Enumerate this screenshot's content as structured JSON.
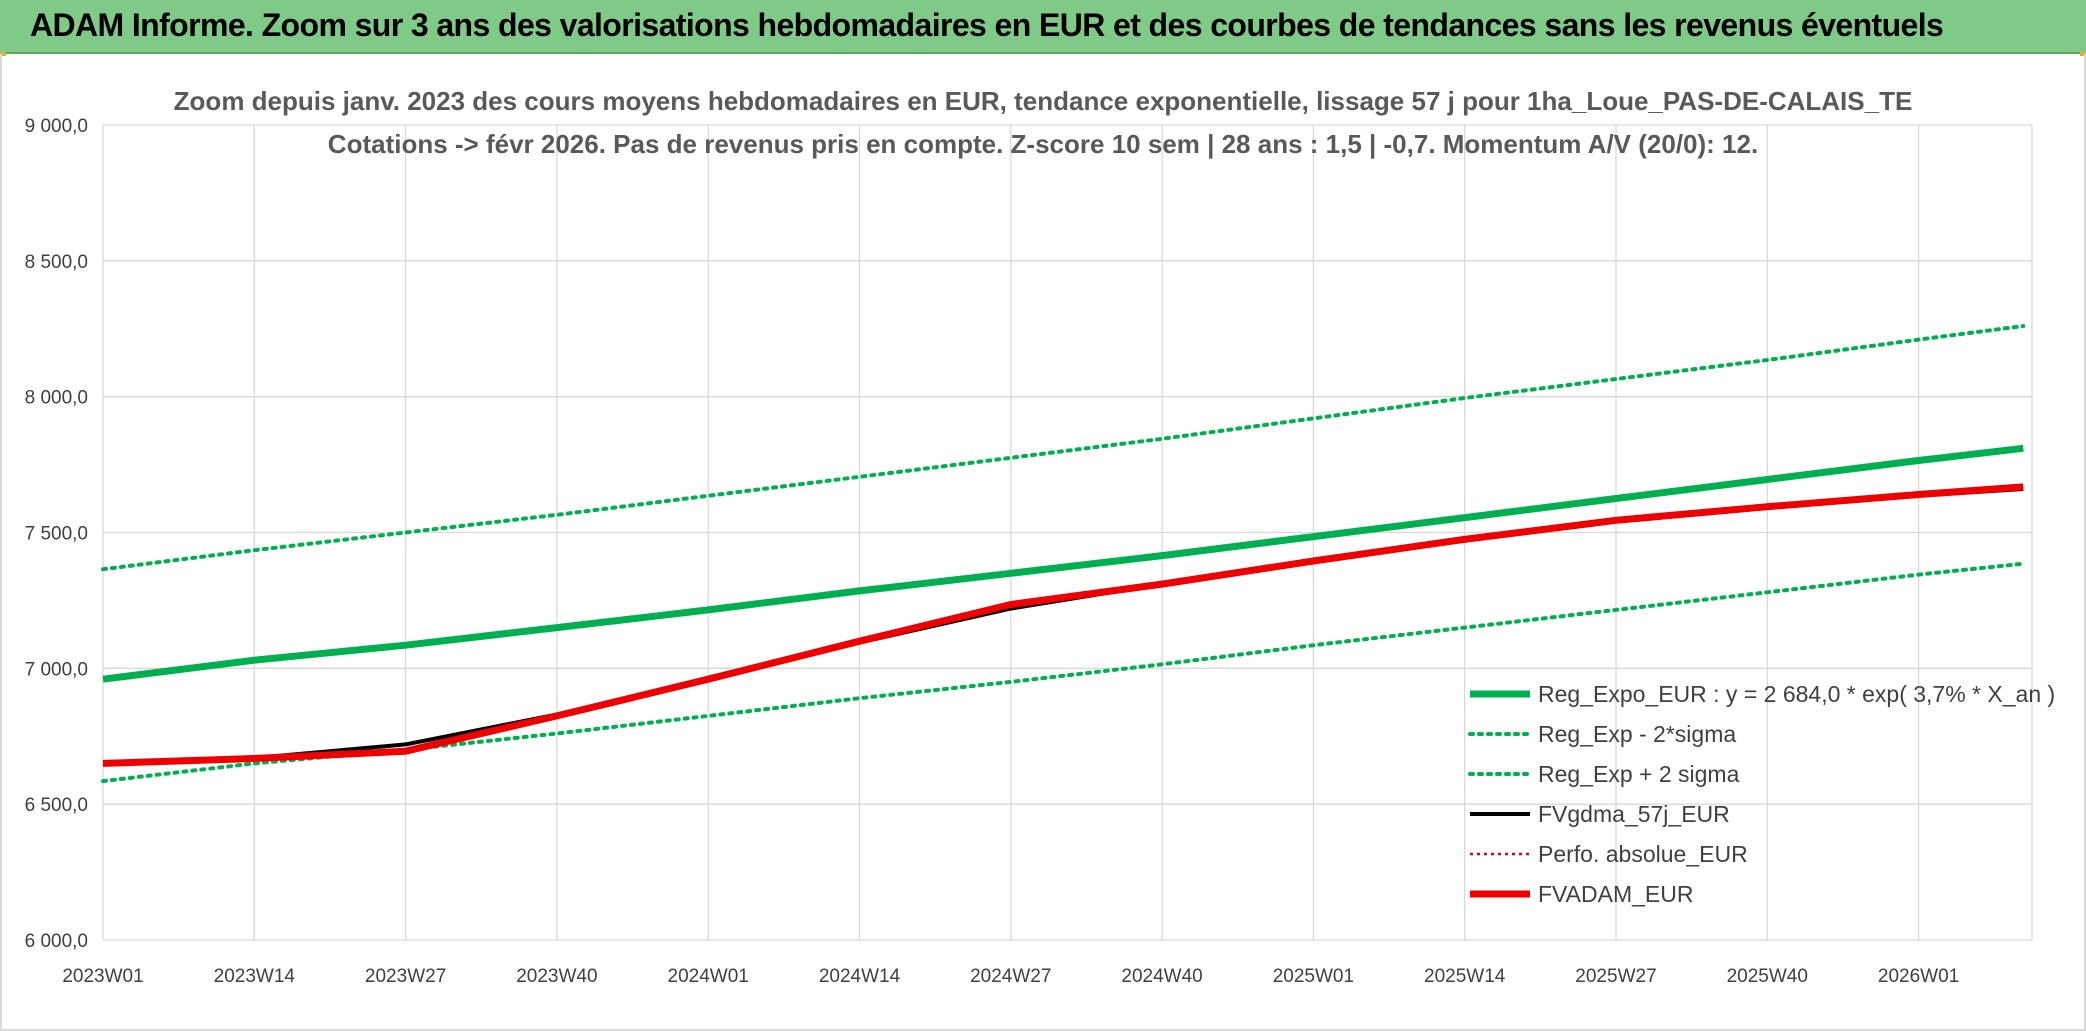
{
  "banner": {
    "title": "ADAM Informe. Zoom sur 3 ans des valorisations hebdomadaires en EUR et des courbes de tendances sans les revenus éventuels"
  },
  "colors": {
    "banner_bg": "#7fca86",
    "reg_expo": "#00b050",
    "fv_gdma": "#000000",
    "perfo": "#e00000",
    "fvadam": "#ee0000",
    "grid": "#d9d9d9"
  },
  "chart_data": {
    "type": "line",
    "title": "Zoom depuis janv. 2023 des cours moyens hebdomadaires en EUR, tendance exponentielle, lissage 57 j pour 1ha_Loue_PAS-DE-CALAIS_TE",
    "subtitle": "Cotations -> févr 2026. Pas de revenus pris en compte. Z-score 10 sem | 28 ans : 1,5 | -0,7. Momentum A/V (20/0): 12.",
    "xlabel": "",
    "ylabel": "",
    "ylim": [
      6000,
      9000
    ],
    "y_ticks": [
      "6 000,0",
      "6 500,0",
      "7 000,0",
      "7 500,0",
      "8 000,0",
      "8 500,0",
      "9 000,0"
    ],
    "x_ticks": [
      "2023W01",
      "2023W14",
      "2023W27",
      "2023W40",
      "2024W01",
      "2024W14",
      "2024W27",
      "2024W40",
      "2025W01",
      "2025W14",
      "2025W27",
      "2025W40",
      "2026W01"
    ],
    "grid": true,
    "legend_position": "bottom-right",
    "x": [
      0,
      13,
      26,
      39,
      52,
      65,
      78,
      91,
      104,
      117,
      130,
      143,
      156,
      165
    ],
    "series": [
      {
        "name": "Reg_Expo_EUR : y = 2 684,0 * exp( 3,7% *  X_an )",
        "style": "solid-thick",
        "color": "#00b050",
        "values": [
          6960,
          7030,
          7085,
          7150,
          7215,
          7285,
          7350,
          7415,
          7485,
          7555,
          7625,
          7695,
          7765,
          7810
        ]
      },
      {
        "name": "Reg_Exp - 2*sigma",
        "style": "dotted",
        "color": "#00b050",
        "values": [
          6585,
          6650,
          6700,
          6760,
          6825,
          6890,
          6950,
          7015,
          7085,
          7150,
          7215,
          7280,
          7345,
          7385
        ]
      },
      {
        "name": "Reg_Exp + 2 sigma",
        "style": "dotted",
        "color": "#00b050",
        "values": [
          7365,
          7435,
          7500,
          7565,
          7635,
          7705,
          7775,
          7845,
          7920,
          7995,
          8065,
          8135,
          8210,
          8260
        ]
      },
      {
        "name": "FVgdma_57j_EUR",
        "style": "solid",
        "color": "#000000",
        "values": [
          6650,
          6670,
          6720,
          6830,
          6960,
          7095,
          7220,
          7310,
          7395,
          7470,
          7540,
          7590,
          7635,
          7660
        ]
      },
      {
        "name": "Perfo. absolue_EUR",
        "style": "dotted-thin",
        "color": "#e00000",
        "values": [
          6650,
          6670,
          6700,
          6825,
          6960,
          7100,
          7230,
          7310,
          7395,
          7475,
          7545,
          7595,
          7640,
          7665
        ]
      },
      {
        "name": "FVADAM_EUR",
        "style": "solid-thick",
        "color": "#ee0000",
        "values": [
          6650,
          6668,
          6695,
          6825,
          6960,
          7100,
          7235,
          7310,
          7395,
          7475,
          7545,
          7595,
          7640,
          7668
        ]
      }
    ]
  }
}
